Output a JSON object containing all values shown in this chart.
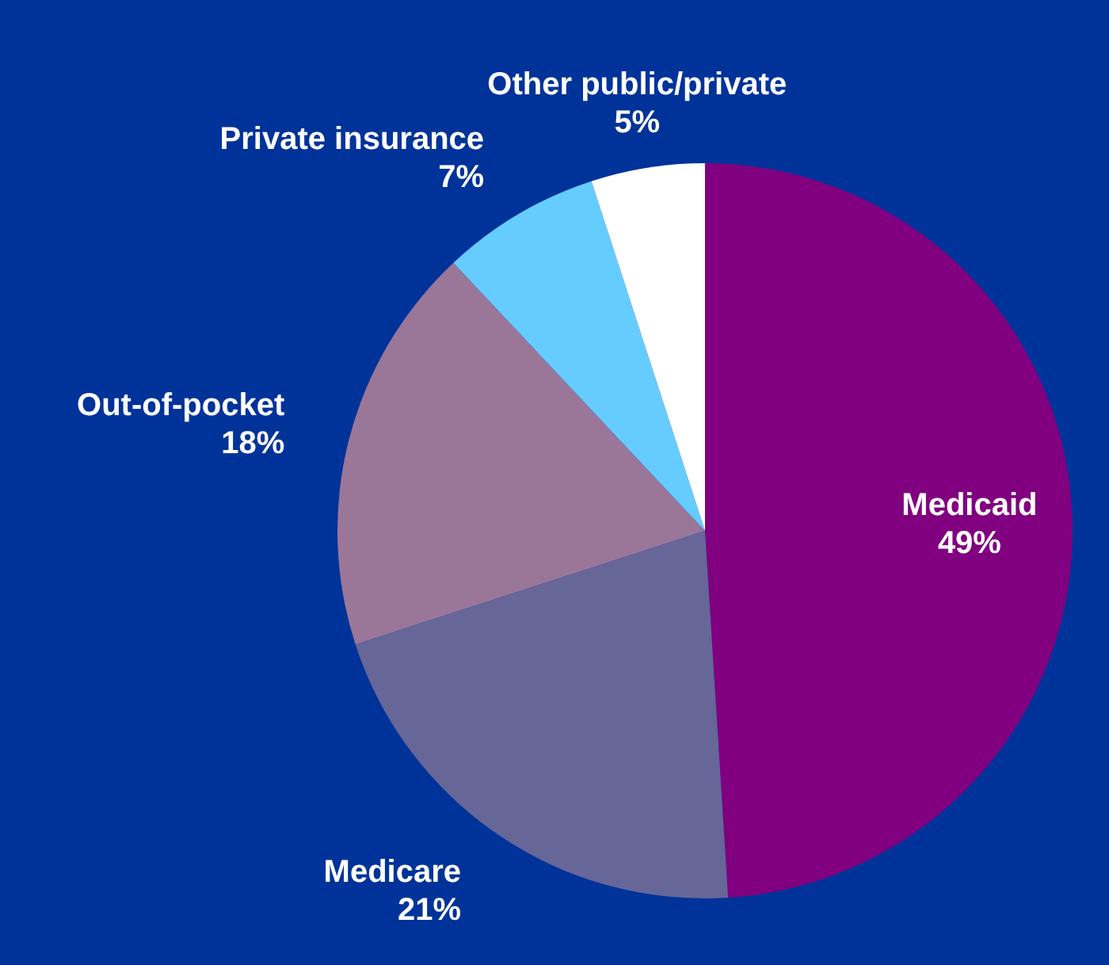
{
  "chart_data": {
    "type": "pie",
    "categories": [
      "Medicaid",
      "Medicare",
      "Out-of-pocket",
      "Private insurance",
      "Other public/private"
    ],
    "values": [
      49,
      21,
      18,
      7,
      5
    ],
    "colors": [
      "#800080",
      "#666699",
      "#9a7799",
      "#66ccff",
      "#ffffff"
    ],
    "value_labels": [
      "49%",
      "21%",
      "18%",
      "7%",
      "5%"
    ]
  }
}
